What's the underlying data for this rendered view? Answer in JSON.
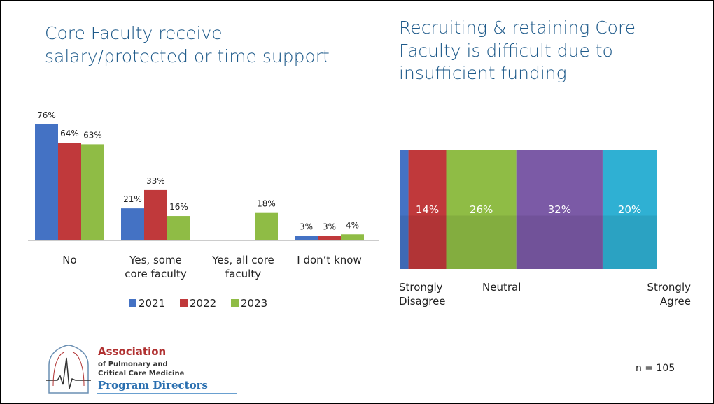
{
  "left_title": "Core Faculty receive salary/protected or time support",
  "right_title": "Recruiting & retaining Core Faculty is difficult due to insufficient funding",
  "n_label": "n = 105",
  "logo": {
    "line1": "Association",
    "line2": "of Pulmonary and",
    "line3": "Critical Care Medicine",
    "line4": "Program Directors"
  },
  "chart_data": [
    {
      "type": "bar",
      "categories": [
        "No",
        "Yes, some core faculty",
        "Yes, all core faculty",
        "I don’t know"
      ],
      "category_lines": [
        [
          "No"
        ],
        [
          "Yes, some",
          "core faculty"
        ],
        [
          "Yes, all core",
          "faculty"
        ],
        [
          "I don’t know"
        ]
      ],
      "series": [
        {
          "name": "2021",
          "color": "#4472c4",
          "values": [
            76,
            21,
            null,
            3
          ],
          "labels": [
            "76%",
            "21%",
            "",
            "3%"
          ]
        },
        {
          "name": "2022",
          "color": "#c0393b",
          "values": [
            64,
            33,
            null,
            3
          ],
          "labels": [
            "64%",
            "33%",
            "",
            "3%"
          ]
        },
        {
          "name": "2023",
          "color": "#8fbc45",
          "values": [
            63,
            16,
            18,
            4
          ],
          "labels": [
            "63%",
            "16%",
            "18%",
            "4%"
          ]
        }
      ],
      "ylim": [
        0,
        80
      ],
      "legend_position": "bottom",
      "grid": false
    },
    {
      "type": "bar",
      "stacked": true,
      "orientation": "horizontal",
      "segments": [
        {
          "value": 3,
          "label": "",
          "color": "#4472c4"
        },
        {
          "value": 14,
          "label": "14%",
          "color": "#c0393b"
        },
        {
          "value": 26,
          "label": "26%",
          "color": "#8fbc45"
        },
        {
          "value": 32,
          "label": "32%",
          "color": "#7b5aa6"
        },
        {
          "value": 20,
          "label": "20%",
          "color": "#2fb0d3"
        }
      ],
      "axis_labels": {
        "left": "Strongly Disagree",
        "left_lines": [
          "Strongly",
          "Disagree"
        ],
        "middle": "Neutral",
        "right": "Strongly Agree",
        "right_lines": [
          "Strongly",
          "Agree"
        ]
      }
    }
  ]
}
